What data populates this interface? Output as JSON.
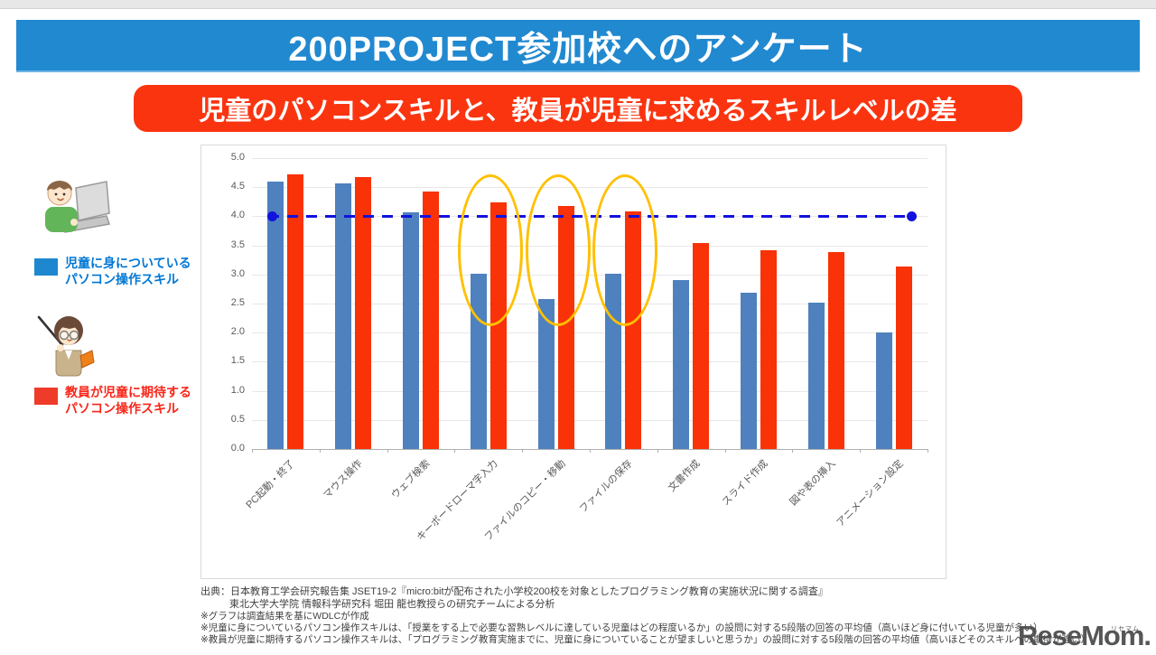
{
  "header": {
    "title": "200PROJECT参加校へのアンケート",
    "subtitle": "児童のパソコンスキルと、教員が児童に求めるスキルレベルの差",
    "title_bg": "#2189d0",
    "subtitle_bg": "#fb3410"
  },
  "legend": {
    "student": {
      "line1": "児童に身についている",
      "line2": "パソコン操作スキル",
      "swatch_color": "#1e87d0",
      "text_color": "#0077d4"
    },
    "teacher": {
      "line1": "教員が児童に期待する",
      "line2": "パソコン操作スキル",
      "swatch_color": "#ef3b2a",
      "text_color": "#fa2618"
    }
  },
  "chart_data": {
    "type": "bar",
    "categories": [
      "PC起動・終了",
      "マウス操作",
      "ウェブ検索",
      "キーボードローマ字入力",
      "ファイルのコピー・移動",
      "ファイルの保存",
      "文書作成",
      "スライド作成",
      "図や表の挿入",
      "アニメーション設定"
    ],
    "series": [
      {
        "name": "児童に身についているパソコン操作スキル",
        "color": "#4e81bd",
        "values": [
          4.6,
          4.57,
          4.07,
          3.02,
          2.58,
          3.01,
          2.91,
          2.69,
          2.51,
          2.01
        ]
      },
      {
        "name": "教員が児童に期待するパソコン操作スキル",
        "color": "#f93207",
        "values": [
          4.72,
          4.68,
          4.43,
          4.24,
          4.17,
          4.08,
          3.54,
          3.42,
          3.38,
          3.14
        ]
      }
    ],
    "ylim": [
      0,
      5
    ],
    "yticks": [
      "0.0",
      "0.5",
      "1.0",
      "1.5",
      "2.0",
      "2.5",
      "3.0",
      "3.5",
      "4.0",
      "4.5",
      "5.0"
    ],
    "grid": true,
    "legend_position": "left",
    "reference_line": {
      "value": 4.0,
      "color": "#1212dd",
      "style": "dashed",
      "endpoint_dots": true
    },
    "highlights": {
      "shape": "ellipse",
      "color": "#ffc000",
      "category_indexes": [
        3,
        4,
        5
      ]
    }
  },
  "footer": {
    "lines": [
      "出典：日本教育工学会研究報告集 JSET19-2『micro:bitが配布された小学校200校を対象としたプログラミング教育の実施状況に関する調査』",
      "東北大学大学院 情報科学研究科 堀田 龍也教授らの研究チームによる分析",
      "※グラフは調査結果を基にWDLCが作成",
      "※児童に身についているパソコン操作スキルは、「授業をする上で必要な習熟レベルに達している児童はどの程度いるか」の設問に対する5段階の回答の平均値（高いほど身に付いている児童が多い）",
      "※教員が児童に期待するパソコン操作スキルは、「プログラミング教育実施までに、児童に身についていることが望ましいと思うか」の設問に対する5段階の回答の平均値（高いほどそのスキルへの期待が強い）"
    ]
  },
  "watermark": {
    "text": "ReseMom.",
    "ruby": "リセマム"
  }
}
